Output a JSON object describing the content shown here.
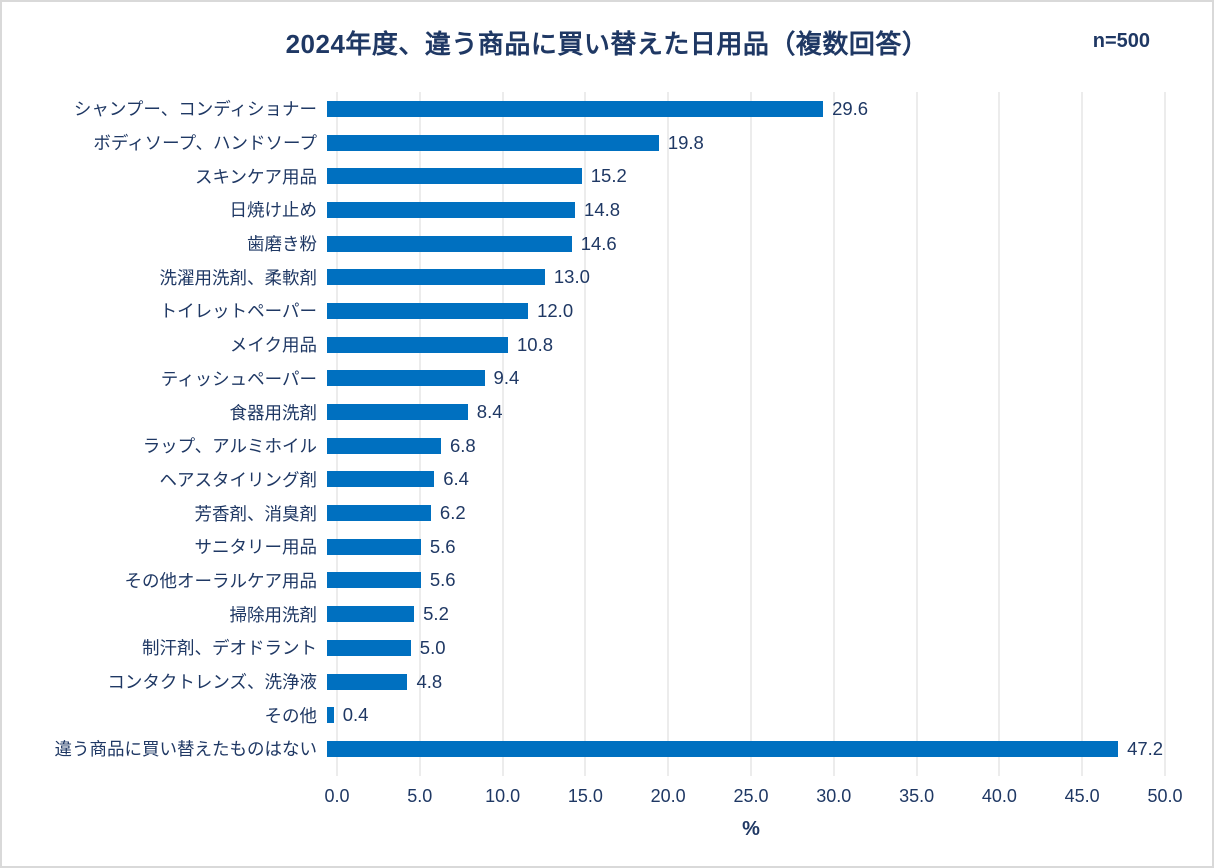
{
  "title": "2024年度、違う商品に買い替えた日用品（複数回答）",
  "sample_size": "n=500",
  "colors": {
    "bar": "#0070C0",
    "text": "#1F3864",
    "gridline": "#D9D9D9",
    "border": "#D9D9D9",
    "background": "#FFFFFF"
  },
  "chart_data": {
    "type": "bar",
    "orientation": "horizontal",
    "title": "2024年度、違う商品に買い替えた日用品（複数回答）",
    "subtitle": "n=500",
    "categories": [
      "シャンプー、コンディショナー",
      "ボディソープ、ハンドソープ",
      "スキンケア用品",
      "日焼け止め",
      "歯磨き粉",
      "洗濯用洗剤、柔軟剤",
      "トイレットペーパー",
      "メイク用品",
      "ティッシュペーパー",
      "食器用洗剤",
      "ラップ、アルミホイル",
      "ヘアスタイリング剤",
      "芳香剤、消臭剤",
      "サニタリー用品",
      "その他オーラルケア用品",
      "掃除用洗剤",
      "制汗剤、デオドラント",
      "コンタクトレンズ、洗浄液",
      "その他",
      "違う商品に買い替えたものはない"
    ],
    "values": [
      29.6,
      19.8,
      15.2,
      14.8,
      14.6,
      13.0,
      12.0,
      10.8,
      9.4,
      8.4,
      6.8,
      6.4,
      6.2,
      5.6,
      5.6,
      5.2,
      5.0,
      4.8,
      0.4,
      47.2
    ],
    "value_label_decimals": 1,
    "xlabel": "%",
    "ylabel": "",
    "xlim": [
      0,
      50
    ],
    "xticks": [
      "0.0",
      "5.0",
      "10.0",
      "15.0",
      "20.0",
      "25.0",
      "30.0",
      "35.0",
      "40.0",
      "45.0",
      "50.0"
    ],
    "grid": "vertical-major",
    "legend_position": "none"
  }
}
